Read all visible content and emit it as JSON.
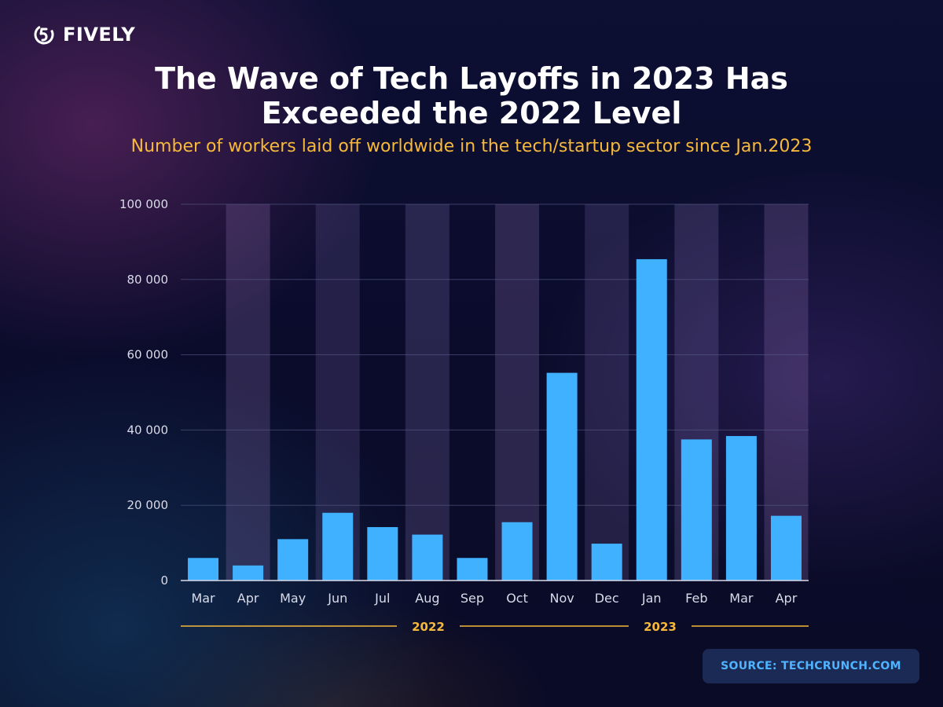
{
  "brand": {
    "name": "FIVELY",
    "icon": "fively-logo-icon"
  },
  "source": "SOURCE: TECHCRUNCH.COM",
  "colors": {
    "bar": "#3fb1ff",
    "accent": "#f6b93b",
    "grid": "#5a5f8a",
    "axis": "#d9dbe8"
  },
  "chart_data": {
    "type": "bar",
    "title": "The Wave of Tech Layoffs in 2023 Has Exceeded the 2022 Level",
    "subtitle": "Number of workers laid off worldwide in the tech/startup sector since Jan.2023",
    "categories": [
      "Mar",
      "Apr",
      "May",
      "Jun",
      "Jul",
      "Aug",
      "Sep",
      "Oct",
      "Nov",
      "Dec",
      "Jan",
      "Feb",
      "Mar",
      "Apr"
    ],
    "values": [
      6000,
      4000,
      11000,
      18000,
      14200,
      12200,
      6000,
      15500,
      55200,
      9800,
      85400,
      37500,
      38400,
      17200
    ],
    "ylim": [
      0,
      100000
    ],
    "yticks": [
      0,
      20000,
      40000,
      60000,
      80000,
      100000
    ],
    "ytick_labels": [
      "0",
      "20 000",
      "40 000",
      "60 000",
      "80 000",
      "100 000"
    ],
    "year_groups": [
      {
        "label": "2022",
        "start": 0,
        "end": 9
      },
      {
        "label": "2023",
        "start": 10,
        "end": 13
      }
    ],
    "grid": true,
    "xlabel": "",
    "ylabel": ""
  }
}
